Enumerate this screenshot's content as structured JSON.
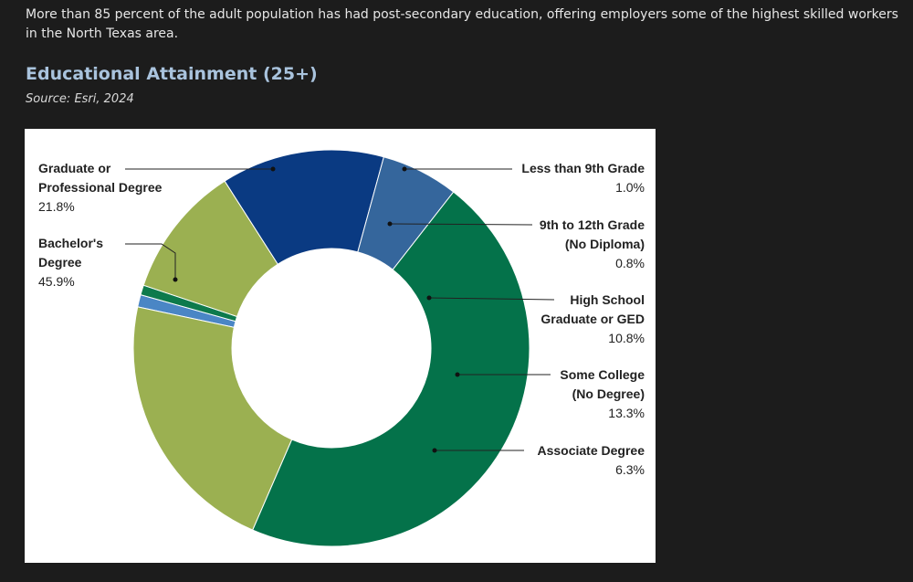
{
  "intro_text": " More than 85 percent of the adult population has had post-secondary education, offering employers some of the highest skilled workers in the North Texas area.",
  "chart_title": "Educational Attainment (25+)",
  "source": "Source: Esri, 2024",
  "chart_data": {
    "type": "pie",
    "title": "Educational Attainment (25+)",
    "donut": true,
    "unit": "%",
    "slices": [
      {
        "label_lines": [
          "Less than 9th Grade"
        ],
        "value": 1.0,
        "value_label": "1.0%",
        "color": "#4a86c5"
      },
      {
        "label_lines": [
          "9th to 12th Grade",
          "(No Diploma)"
        ],
        "value": 0.8,
        "value_label": "0.8%",
        "color": "#0d7a4c"
      },
      {
        "label_lines": [
          "High School",
          "Graduate or GED"
        ],
        "value": 10.8,
        "value_label": "10.8%",
        "color": "#9bb051"
      },
      {
        "label_lines": [
          "Some College",
          "(No Degree)"
        ],
        "value": 13.3,
        "value_label": "13.3%",
        "color": "#0a3a82"
      },
      {
        "label_lines": [
          "Associate Degree"
        ],
        "value": 6.3,
        "value_label": "6.3%",
        "color": "#35669c"
      },
      {
        "label_lines": [
          "Bachelor's",
          "Degree"
        ],
        "value": 45.9,
        "value_label": "45.9%",
        "color": "#04724a"
      },
      {
        "label_lines": [
          "Graduate or",
          "Professional Degree"
        ],
        "value": 21.8,
        "value_label": "21.8%",
        "color": "#9bb051"
      }
    ]
  }
}
